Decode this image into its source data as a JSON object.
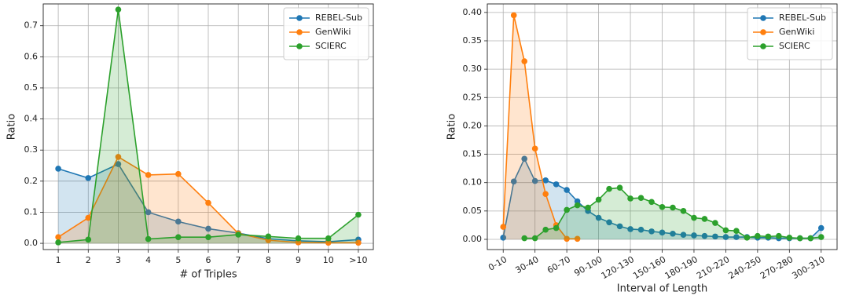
{
  "chart_data": [
    {
      "type": "line",
      "x_label": "# of Triples",
      "y_label": "Ratio",
      "categories": [
        "1",
        "2",
        "3",
        "4",
        "5",
        "6",
        "7",
        "8",
        "9",
        "10",
        ">10"
      ],
      "series": [
        {
          "name": "REBEL-Sub",
          "color": "#1f77b4",
          "values": [
            0.24,
            0.21,
            0.255,
            0.1,
            0.07,
            0.047,
            0.033,
            0.015,
            0.008,
            0.005,
            0.012
          ]
        },
        {
          "name": "GenWiki",
          "color": "#ff7f0e",
          "values": [
            0.02,
            0.082,
            0.278,
            0.22,
            0.223,
            0.13,
            0.032,
            0.01,
            0.003,
            0.002,
            0.002
          ]
        },
        {
          "name": "SCIERC",
          "color": "#2ca02c",
          "values": [
            0.003,
            0.012,
            0.752,
            0.014,
            0.02,
            0.02,
            0.028,
            0.022,
            0.016,
            0.016,
            0.092
          ]
        }
      ],
      "ylim": [
        -0.02,
        0.77
      ],
      "yticks": [
        {
          "value": 0,
          "label": "0.0"
        },
        0.1,
        0.2,
        0.3,
        0.4,
        0.5,
        0.6,
        0.7
      ],
      "grid": true,
      "legend": "upper right",
      "rotate_x_labels": false
    },
    {
      "type": "line",
      "x_label": "Interval of Length",
      "y_label": "Ratio",
      "categories": [
        "0-10",
        null,
        null,
        "30-40",
        null,
        null,
        "60-70",
        null,
        null,
        "90-100",
        null,
        null,
        "120-130",
        null,
        null,
        "150-160",
        null,
        null,
        "180-190",
        null,
        null,
        "210-220",
        null,
        null,
        "240-250",
        null,
        null,
        "270-280",
        null,
        null,
        "300-310"
      ],
      "series": [
        {
          "name": "REBEL-Sub",
          "color": "#1f77b4",
          "values": [
            0.003,
            0.102,
            0.142,
            0.103,
            0.104,
            0.097,
            0.087,
            0.067,
            0.05,
            0.038,
            0.03,
            0.023,
            0.018,
            0.017,
            0.014,
            0.012,
            0.01,
            0.008,
            0.007,
            0.006,
            0.005,
            0.004,
            0.004,
            0.004,
            0.003,
            0.003,
            0.002,
            0.002,
            0.002,
            0.002,
            0.02
          ]
        },
        {
          "name": "GenWiki",
          "color": "#ff7f0e",
          "values": [
            0.022,
            0.395,
            0.314,
            0.16,
            0.08,
            0.025,
            0.001,
            0.001,
            null,
            null,
            null,
            null,
            null,
            null,
            null,
            null,
            null,
            null,
            null,
            null,
            null,
            null,
            null,
            null,
            null,
            null,
            null,
            null,
            null,
            null,
            null
          ]
        },
        {
          "name": "SCIERC",
          "color": "#2ca02c",
          "values": [
            null,
            null,
            0.002,
            0.002,
            0.017,
            0.02,
            0.052,
            0.06,
            0.056,
            0.07,
            0.089,
            0.091,
            0.072,
            0.073,
            0.066,
            0.057,
            0.056,
            0.05,
            0.038,
            0.036,
            0.029,
            0.016,
            0.015,
            0.003,
            0.006,
            0.005,
            0.006,
            0.003,
            0.002,
            0.002,
            0.004
          ]
        }
      ],
      "ylim": [
        -0.018,
        0.415
      ],
      "yticks": [
        {
          "value": 0,
          "label": "0.00"
        },
        0.05,
        {
          "value": 0.1,
          "label": "0.10"
        },
        0.15,
        {
          "value": 0.2,
          "label": "0.20"
        },
        0.25,
        {
          "value": 0.3,
          "label": "0.30"
        },
        0.35,
        {
          "value": 0.4,
          "label": "0.40"
        }
      ],
      "grid": true,
      "legend": "upper right",
      "rotate_x_labels": true
    }
  ]
}
